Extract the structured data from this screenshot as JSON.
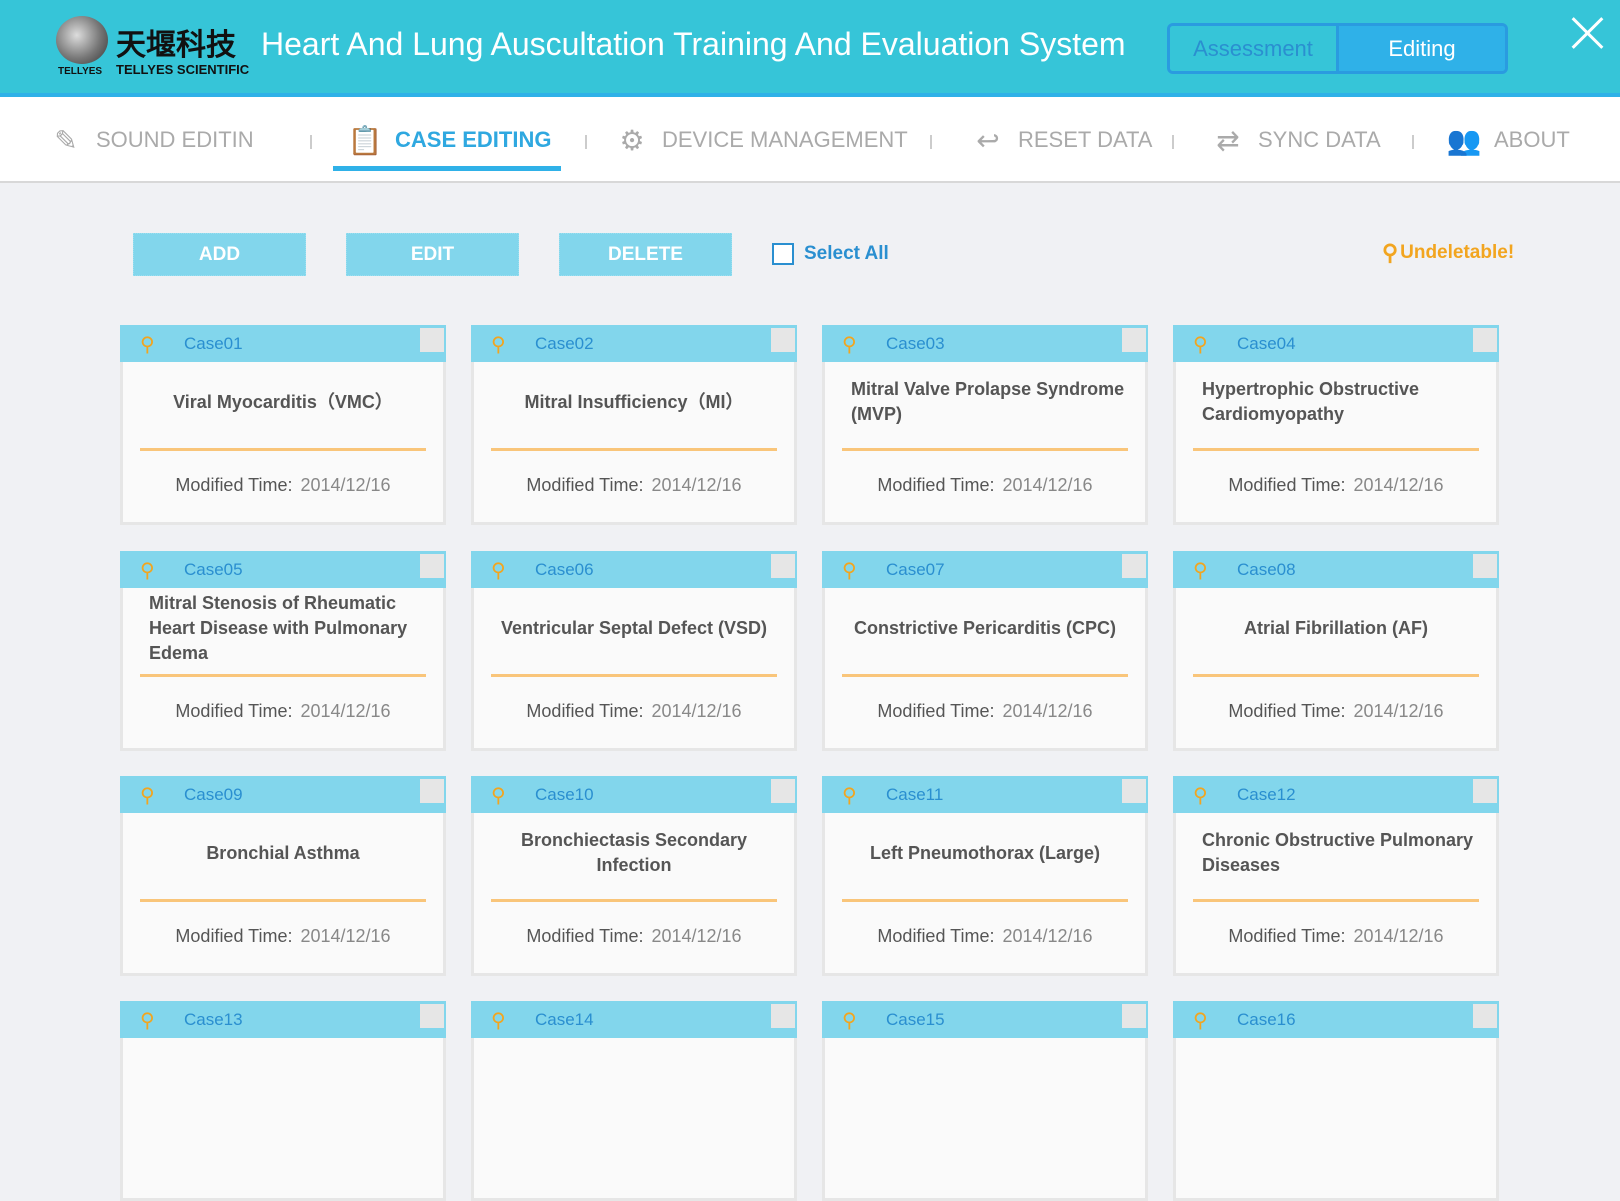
{
  "header": {
    "brand_cn": "天堰科技",
    "brand_en": "TELLYES SCIENTIFIC",
    "logo_text": "TELLYES",
    "title": "Heart And Lung Auscultation Training And Evaluation System",
    "modes": [
      "Assessment",
      "Editing"
    ],
    "active_mode": "Editing"
  },
  "nav": [
    {
      "label": "SOUND EDITIN",
      "icon": "edit-icon"
    },
    {
      "label": "CASE EDITING",
      "icon": "clipboard-icon",
      "active": true
    },
    {
      "label": "DEVICE MANAGEMENT",
      "icon": "gear-icon"
    },
    {
      "label": "RESET DATA",
      "icon": "reset-icon"
    },
    {
      "label": "SYNC DATA",
      "icon": "sync-icon"
    },
    {
      "label": "ABOUT",
      "icon": "users-icon"
    }
  ],
  "toolbar": {
    "add": "ADD",
    "edit": "EDIT",
    "delete": "DELETE",
    "select_all": "Select All",
    "undeletable": "Undeletable!"
  },
  "modified_label": "Modified Time:",
  "colors": {
    "header": "#36c5d8",
    "accent": "#2fb1e8",
    "card_head": "#82d6ec",
    "warn": "#f2a51f"
  },
  "cases": [
    {
      "id": "Case01",
      "title": "Viral Myocarditis（VMC）",
      "date": "2014/12/16"
    },
    {
      "id": "Case02",
      "title": "Mitral Insufficiency（MI）",
      "date": "2014/12/16"
    },
    {
      "id": "Case03",
      "title": "Mitral Valve Prolapse Syndrome (MVP)",
      "date": "2014/12/16"
    },
    {
      "id": "Case04",
      "title": "Hypertrophic Obstructive Cardiomyopathy",
      "date": "2014/12/16"
    },
    {
      "id": "Case05",
      "title": "Mitral Stenosis of Rheumatic Heart Disease with Pulmonary Edema",
      "date": "2014/12/16"
    },
    {
      "id": "Case06",
      "title": "Ventricular Septal Defect (VSD)",
      "date": "2014/12/16"
    },
    {
      "id": "Case07",
      "title": "Constrictive Pericarditis (CPC)",
      "date": "2014/12/16"
    },
    {
      "id": "Case08",
      "title": "Atrial Fibrillation (AF)",
      "date": "2014/12/16"
    },
    {
      "id": "Case09",
      "title": "Bronchial Asthma",
      "date": "2014/12/16"
    },
    {
      "id": "Case10",
      "title": "Bronchiectasis Secondary Infection",
      "date": "2014/12/16"
    },
    {
      "id": "Case11",
      "title": "Left Pneumothorax (Large)",
      "date": "2014/12/16"
    },
    {
      "id": "Case12",
      "title": "Chronic Obstructive Pulmonary Diseases",
      "date": "2014/12/16"
    },
    {
      "id": "Case13"
    },
    {
      "id": "Case14"
    },
    {
      "id": "Case15"
    },
    {
      "id": "Case16"
    }
  ]
}
